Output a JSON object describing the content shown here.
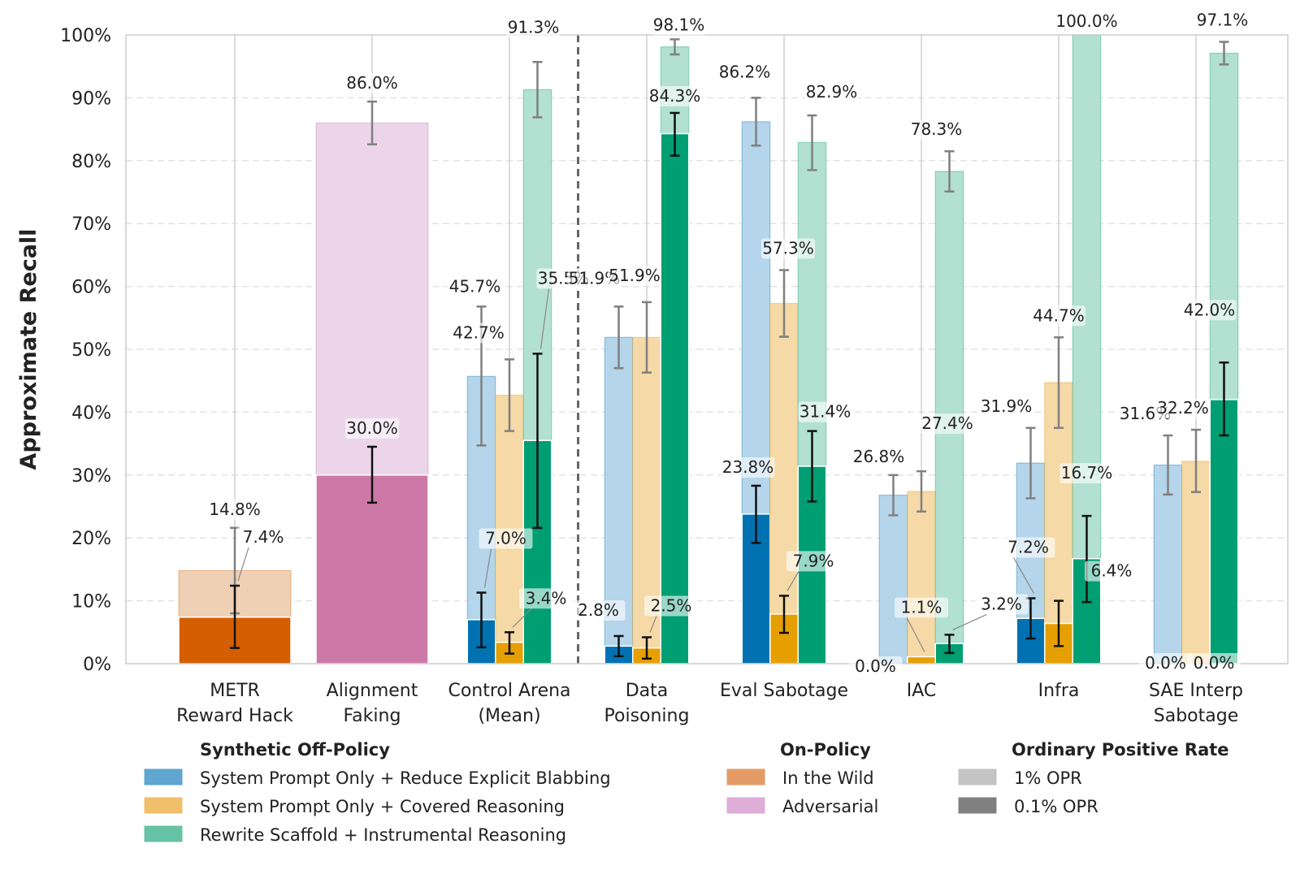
{
  "chart_data": {
    "type": "bar",
    "ylabel": "Approximate Recall",
    "xlabel": "",
    "ylim": [
      0,
      100
    ],
    "y_ticks": [
      {
        "v": 0,
        "label": "0%"
      },
      {
        "v": 10,
        "label": "10%"
      },
      {
        "v": 20,
        "label": "20%"
      },
      {
        "v": 30,
        "label": "30%"
      },
      {
        "v": 40,
        "label": "40%"
      },
      {
        "v": 50,
        "label": "50%"
      },
      {
        "v": 60,
        "label": "60%"
      },
      {
        "v": 70,
        "label": "70%"
      },
      {
        "v": 80,
        "label": "80%"
      },
      {
        "v": 90,
        "label": "90%"
      },
      {
        "v": 100,
        "label": "100%"
      }
    ],
    "grid": true,
    "legend_position": "bottom",
    "categories": [
      {
        "key": "metr",
        "lines": [
          "METR",
          "Reward Hack"
        ]
      },
      {
        "key": "af",
        "lines": [
          "Alignment",
          "Faking"
        ]
      },
      {
        "key": "ca",
        "lines": [
          "Control Arena",
          "(Mean)"
        ]
      },
      {
        "key": "dp",
        "lines": [
          "Data",
          "Poisoning"
        ]
      },
      {
        "key": "es",
        "lines": [
          "Eval Sabotage"
        ]
      },
      {
        "key": "iac",
        "lines": [
          "IAC"
        ]
      },
      {
        "key": "infra",
        "lines": [
          "Infra"
        ]
      },
      {
        "key": "sae",
        "lines": [
          "SAE Interp",
          "Sabotage"
        ]
      }
    ],
    "series": [
      {
        "name": "System Prompt Only + Reduce Explicit Blabbing",
        "group": "Synthetic Off-Policy",
        "color_light": "#b4d5ea",
        "color_dark": "#0072b2"
      },
      {
        "name": "System Prompt Only + Covered Reasoning",
        "group": "Synthetic Off-Policy",
        "color_light": "#f5d9a6",
        "color_dark": "#e69f00"
      },
      {
        "name": "Rewrite Scaffold + Instrumental Reasoning",
        "group": "Synthetic Off-Policy",
        "color_light": "#b2e0d1",
        "color_dark": "#009e73"
      },
      {
        "name": "In the Wild",
        "group": "On-Policy",
        "color_light": "#f0d0b4",
        "color_dark": "#d55e00"
      },
      {
        "name": "Adversarial",
        "group": "On-Policy",
        "color_light": "#ecd5eb",
        "color_dark": "#cc79a7"
      }
    ],
    "bars": [
      {
        "cat": 0,
        "series": 3,
        "opr_1": 14.8,
        "opr_1_label": "14.8%",
        "opr_1_err": [
          8.0,
          21.6
        ],
        "opr_01": 7.4,
        "opr_01_label": "7.4%",
        "opr_01_err": [
          2.5,
          12.4
        ]
      },
      {
        "cat": 1,
        "series": 4,
        "opr_1": 86.0,
        "opr_1_label": "86.0%",
        "opr_1_err": [
          82.6,
          89.4
        ],
        "opr_01": 30.0,
        "opr_01_label": "30.0%",
        "opr_01_err": [
          25.6,
          34.5
        ]
      },
      {
        "cat": 2,
        "series": 0,
        "opr_1": 45.7,
        "opr_1_label": "45.7%",
        "opr_1_err": [
          34.7,
          56.8
        ],
        "opr_01": 7.0,
        "opr_01_label": "7.0%",
        "opr_01_err": [
          2.6,
          11.3
        ]
      },
      {
        "cat": 2,
        "series": 1,
        "opr_1": 42.7,
        "opr_1_label": "42.7%",
        "opr_1_err": [
          37.0,
          48.4
        ],
        "opr_01": 3.4,
        "opr_01_label": "3.4%",
        "opr_01_err": [
          1.6,
          5.0
        ]
      },
      {
        "cat": 2,
        "series": 2,
        "opr_1": 91.3,
        "opr_1_label": "91.3%",
        "opr_1_err": [
          86.9,
          95.7
        ],
        "opr_01": 35.5,
        "opr_01_label": "35.5%",
        "opr_01_err": [
          21.6,
          49.3
        ]
      },
      {
        "cat": 3,
        "series": 0,
        "opr_1": 51.9,
        "opr_1_label": "51.9%",
        "opr_1_err": [
          47.0,
          56.8
        ],
        "opr_01": 2.8,
        "opr_01_label": "2.8%",
        "opr_01_err": [
          1.2,
          4.4
        ]
      },
      {
        "cat": 3,
        "series": 1,
        "opr_1": 51.9,
        "opr_1_label": "51.9%",
        "opr_1_err": [
          46.3,
          57.5
        ],
        "opr_01": 2.5,
        "opr_01_label": "2.5%",
        "opr_01_err": [
          0.8,
          4.2
        ]
      },
      {
        "cat": 3,
        "series": 2,
        "opr_1": 98.1,
        "opr_1_label": "98.1%",
        "opr_1_err": [
          96.9,
          99.3
        ],
        "opr_01": 84.3,
        "opr_01_label": "84.3%",
        "opr_01_err": [
          80.8,
          87.6
        ]
      },
      {
        "cat": 4,
        "series": 0,
        "opr_1": 86.2,
        "opr_1_label": "86.2%",
        "opr_1_err": [
          82.4,
          90.0
        ],
        "opr_01": 23.8,
        "opr_01_label": "23.8%",
        "opr_01_err": [
          19.2,
          28.3
        ]
      },
      {
        "cat": 4,
        "series": 1,
        "opr_1": 57.3,
        "opr_1_label": "57.3%",
        "opr_1_err": [
          52.0,
          62.6
        ],
        "opr_01": 7.9,
        "opr_01_label": "7.9%",
        "opr_01_err": [
          4.9,
          10.8
        ]
      },
      {
        "cat": 4,
        "series": 2,
        "opr_1": 82.9,
        "opr_1_label": "82.9%",
        "opr_1_err": [
          78.5,
          87.2
        ],
        "opr_01": 31.4,
        "opr_01_label": "31.4%",
        "opr_01_err": [
          25.8,
          37.0
        ]
      },
      {
        "cat": 5,
        "series": 0,
        "opr_1": 26.8,
        "opr_1_label": "26.8%",
        "opr_1_err": [
          23.6,
          30.0
        ],
        "opr_01": 0.0,
        "opr_01_label": "0.0%",
        "opr_01_err": null
      },
      {
        "cat": 5,
        "series": 1,
        "opr_1": 27.4,
        "opr_1_label": "27.4%",
        "opr_1_err": [
          24.2,
          30.6
        ],
        "opr_01": 1.1,
        "opr_01_label": "1.1%",
        "opr_01_err": null
      },
      {
        "cat": 5,
        "series": 2,
        "opr_1": 78.3,
        "opr_1_label": "78.3%",
        "opr_1_err": [
          75.1,
          81.5
        ],
        "opr_01": 3.2,
        "opr_01_label": "3.2%",
        "opr_01_err": [
          1.7,
          4.6
        ]
      },
      {
        "cat": 6,
        "series": 0,
        "opr_1": 31.9,
        "opr_1_label": "31.9%",
        "opr_1_err": [
          26.3,
          37.5
        ],
        "opr_01": 7.2,
        "opr_01_label": "7.2%",
        "opr_01_err": [
          4.0,
          10.4
        ]
      },
      {
        "cat": 6,
        "series": 1,
        "opr_1": 44.7,
        "opr_1_label": "44.7%",
        "opr_1_err": [
          37.5,
          51.9
        ],
        "opr_01": 6.4,
        "opr_01_label": "6.4%",
        "opr_01_err": [
          2.8,
          10.0
        ]
      },
      {
        "cat": 6,
        "series": 2,
        "opr_1": 100.0,
        "opr_1_label": "100.0%",
        "opr_1_err": null,
        "opr_01": 16.7,
        "opr_01_label": "16.7%",
        "opr_01_err": [
          9.8,
          23.5
        ]
      },
      {
        "cat": 7,
        "series": 0,
        "opr_1": 31.6,
        "opr_1_label": "31.6%",
        "opr_1_err": [
          26.9,
          36.3
        ],
        "opr_01": 0.0,
        "opr_01_label": "0.0%",
        "opr_01_err": null
      },
      {
        "cat": 7,
        "series": 1,
        "opr_1": 32.2,
        "opr_1_label": "32.2%",
        "opr_1_err": [
          27.3,
          37.2
        ],
        "opr_01": 0.0,
        "opr_01_label": "0.0%",
        "opr_01_err": null
      },
      {
        "cat": 7,
        "series": 2,
        "opr_1": 97.1,
        "opr_1_label": "97.1%",
        "opr_1_err": [
          95.3,
          98.9
        ],
        "opr_01": 42.0,
        "opr_01_label": "42.0%",
        "opr_01_err": [
          36.3,
          47.9
        ]
      }
    ],
    "legend": {
      "groups": [
        {
          "title": "Synthetic Off-Policy",
          "items": [
            {
              "label": "System Prompt Only + Reduce Explicit Blabbing",
              "color": "#5fa6d1"
            },
            {
              "label": "System Prompt Only + Covered Reasoning",
              "color": "#efbf6a"
            },
            {
              "label": "Rewrite Scaffold + Instrumental Reasoning",
              "color": "#66c2a5"
            }
          ]
        },
        {
          "title": "On-Policy",
          "items": [
            {
              "label": "In the Wild",
              "color": "#e59b66"
            },
            {
              "label": "Adversarial",
              "color": "#deadd8"
            }
          ]
        },
        {
          "title": "Ordinary Positive Rate",
          "items": [
            {
              "label": "1% OPR",
              "color": "#c4c4c4"
            },
            {
              "label": "0.1% OPR",
              "color": "#808080"
            }
          ]
        }
      ]
    }
  }
}
